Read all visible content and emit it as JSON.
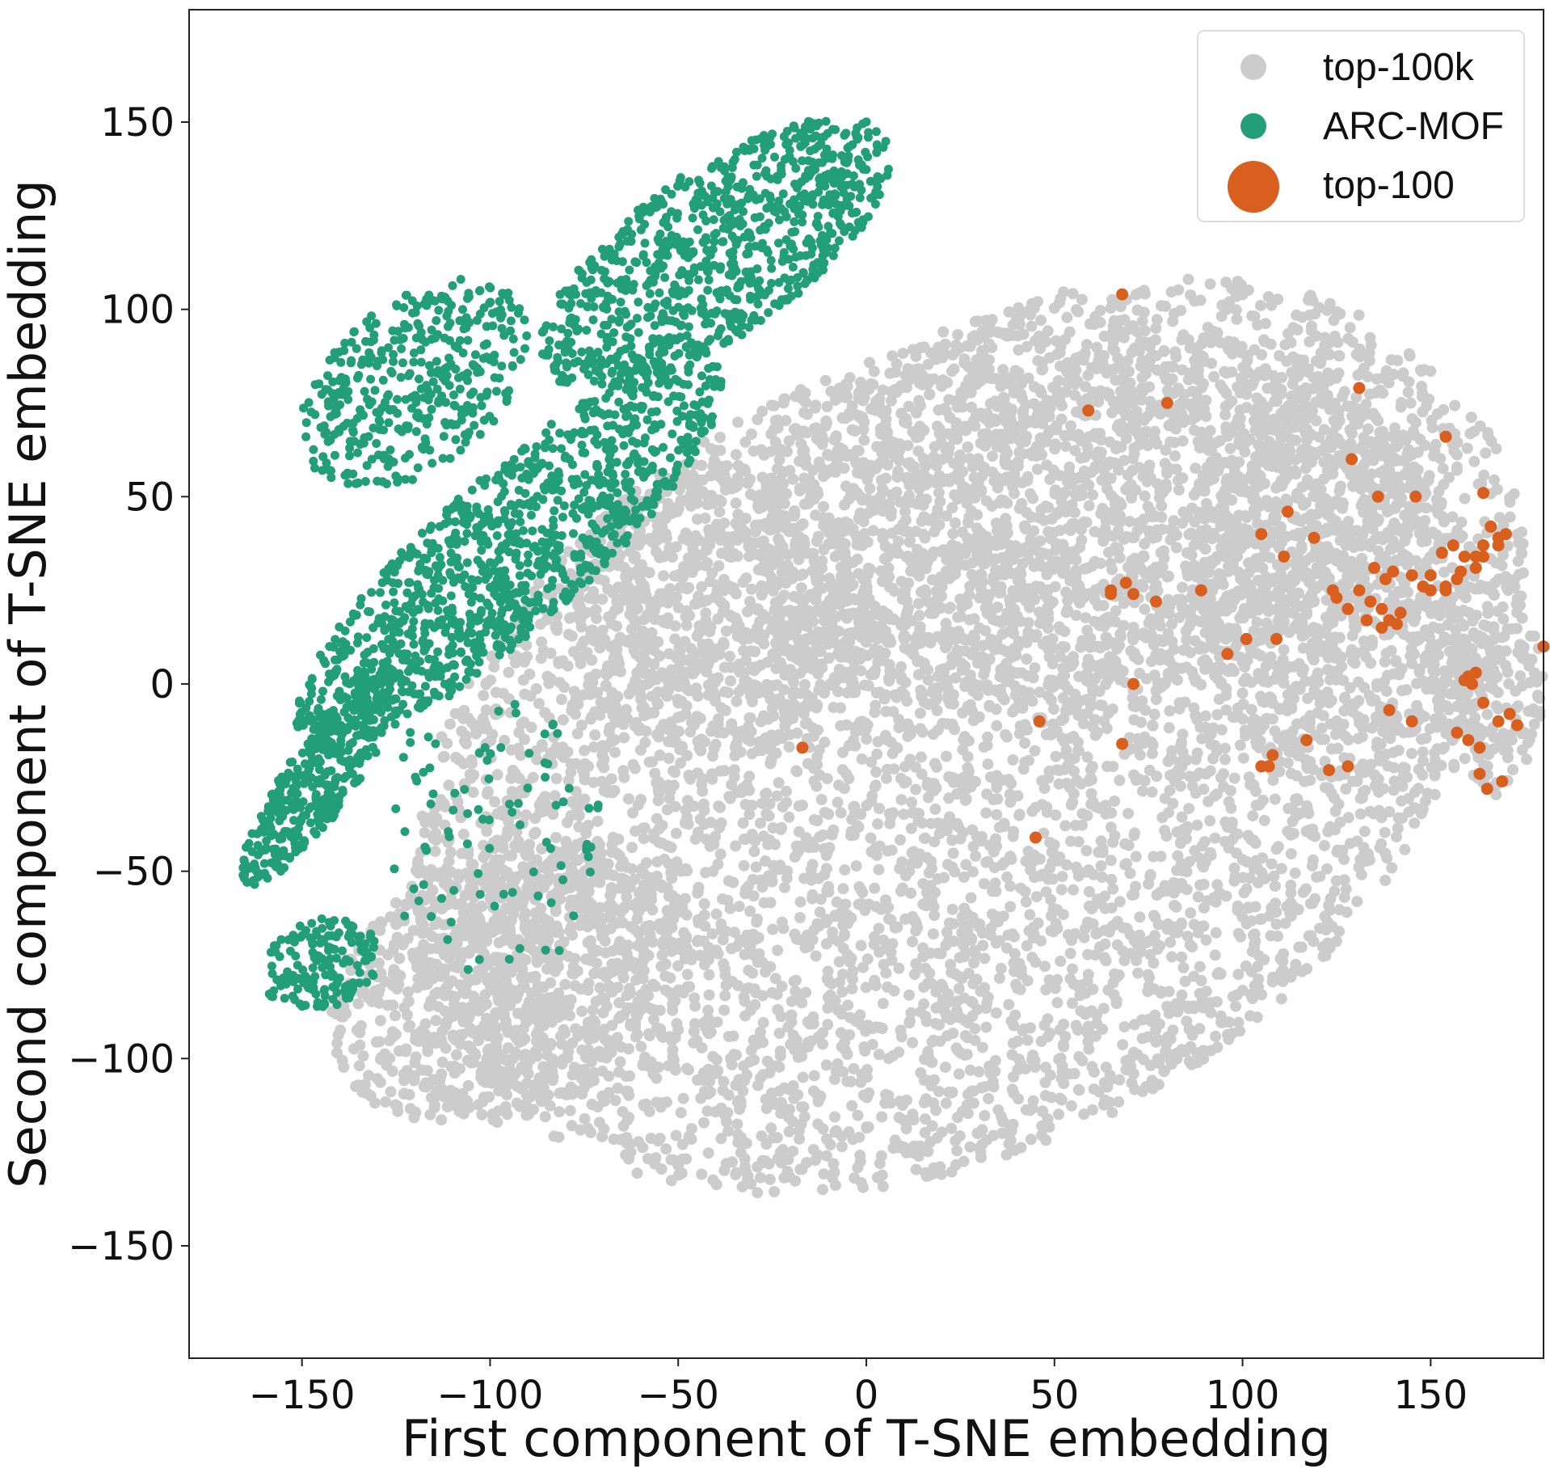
{
  "chart_data": {
    "type": "scatter",
    "title": "",
    "xlabel": "First component of T-SNE embedding",
    "ylabel": "Second component of T-SNE embedding",
    "xlim": [
      -180,
      180
    ],
    "ylim": [
      -180,
      180
    ],
    "xticks": [
      -150,
      -100,
      -50,
      0,
      50,
      100,
      150
    ],
    "yticks": [
      -150,
      -100,
      -50,
      0,
      50,
      100,
      150
    ],
    "xtick_labels": [
      "−150",
      "−100",
      "−50",
      "0",
      "50",
      "100",
      "150"
    ],
    "ytick_labels": [
      "−150",
      "−100",
      "−50",
      "0",
      "50",
      "100",
      "150"
    ],
    "grid": false,
    "legend_position": "top-right",
    "series": [
      {
        "name": "top-100k",
        "color": "#cccccc",
        "marker_size": "small",
        "regions": [
          {
            "cx": 20,
            "cy": -20,
            "rx": 150,
            "ry": 105,
            "rot": 28,
            "n": 5200
          },
          {
            "cx": 60,
            "cy": 50,
            "rx": 95,
            "ry": 55,
            "rot": 15,
            "n": 1500
          },
          {
            "cx": 130,
            "cy": 30,
            "rx": 45,
            "ry": 60,
            "rot": 0,
            "n": 700
          },
          {
            "cx": -95,
            "cy": -80,
            "rx": 50,
            "ry": 35,
            "rot": 25,
            "n": 800
          },
          {
            "cx": -40,
            "cy": 20,
            "rx": 40,
            "ry": 40,
            "rot": 40,
            "n": 500
          },
          {
            "cx": 165,
            "cy": 0,
            "rx": 15,
            "ry": 30,
            "rot": 0,
            "n": 200
          }
        ]
      },
      {
        "name": "ARC-MOF",
        "color": "#229e78",
        "marker_size": "medium",
        "regions": [
          {
            "cx": -40,
            "cy": 115,
            "rx": 55,
            "ry": 22,
            "rot": 35,
            "n": 900
          },
          {
            "cx": -95,
            "cy": 35,
            "rx": 75,
            "ry": 20,
            "rot": 42,
            "n": 1100
          },
          {
            "cx": -120,
            "cy": 80,
            "rx": 35,
            "ry": 22,
            "rot": 40,
            "n": 400
          },
          {
            "cx": -145,
            "cy": -25,
            "rx": 35,
            "ry": 9,
            "rot": 55,
            "n": 350
          },
          {
            "cx": -145,
            "cy": -75,
            "rx": 16,
            "ry": 12,
            "rot": 20,
            "n": 150
          },
          {
            "cx": -100,
            "cy": -40,
            "rx": 30,
            "ry": 40,
            "rot": 0,
            "n": 90
          }
        ]
      },
      {
        "name": "top-100",
        "color": "#d95f1f",
        "marker_size": "large",
        "x": [
          68,
          59,
          80,
          131,
          154,
          129,
          136,
          146,
          164,
          112,
          105,
          111,
          119,
          135,
          140,
          145,
          150,
          154,
          158,
          162,
          164,
          168,
          131,
          134,
          138,
          142,
          139,
          133,
          137,
          141,
          124,
          125,
          128,
          137,
          153,
          159,
          164,
          168,
          170,
          166,
          154,
          157,
          162,
          156,
          96,
          101,
          89,
          77,
          65,
          69,
          71,
          65,
          109,
          71,
          46,
          68,
          105,
          108,
          117,
          128,
          123,
          139,
          145,
          160,
          159,
          162,
          164,
          168,
          171,
          173,
          180,
          161,
          163,
          160,
          157,
          169,
          163,
          165,
          -17,
          45,
          148,
          150,
          107
        ],
        "y": [
          104,
          73,
          75,
          79,
          66,
          60,
          50,
          50,
          51,
          46,
          40,
          34,
          39,
          31,
          30,
          29,
          25,
          26,
          30,
          34,
          37,
          39,
          25,
          22,
          28,
          19,
          17,
          17,
          15,
          16,
          25,
          23,
          20,
          20,
          35,
          34,
          34,
          37,
          40,
          42,
          25,
          28,
          31,
          37,
          8,
          12,
          25,
          22,
          25,
          27,
          24,
          24,
          12,
          0,
          -10,
          -16,
          -22,
          -19,
          -15,
          -22,
          -23,
          -7,
          -10,
          2,
          1,
          3,
          -5,
          -10,
          -8,
          -11,
          10,
          0,
          -17,
          -15,
          -13,
          -26,
          -24,
          -28,
          -17,
          -41,
          26,
          29,
          -22
        ]
      }
    ]
  },
  "legend": {
    "items": [
      {
        "label": "top-100k",
        "color": "#cccccc"
      },
      {
        "label": "ARC-MOF",
        "color": "#229e78"
      },
      {
        "label": "top-100",
        "color": "#d95f1f"
      }
    ]
  }
}
